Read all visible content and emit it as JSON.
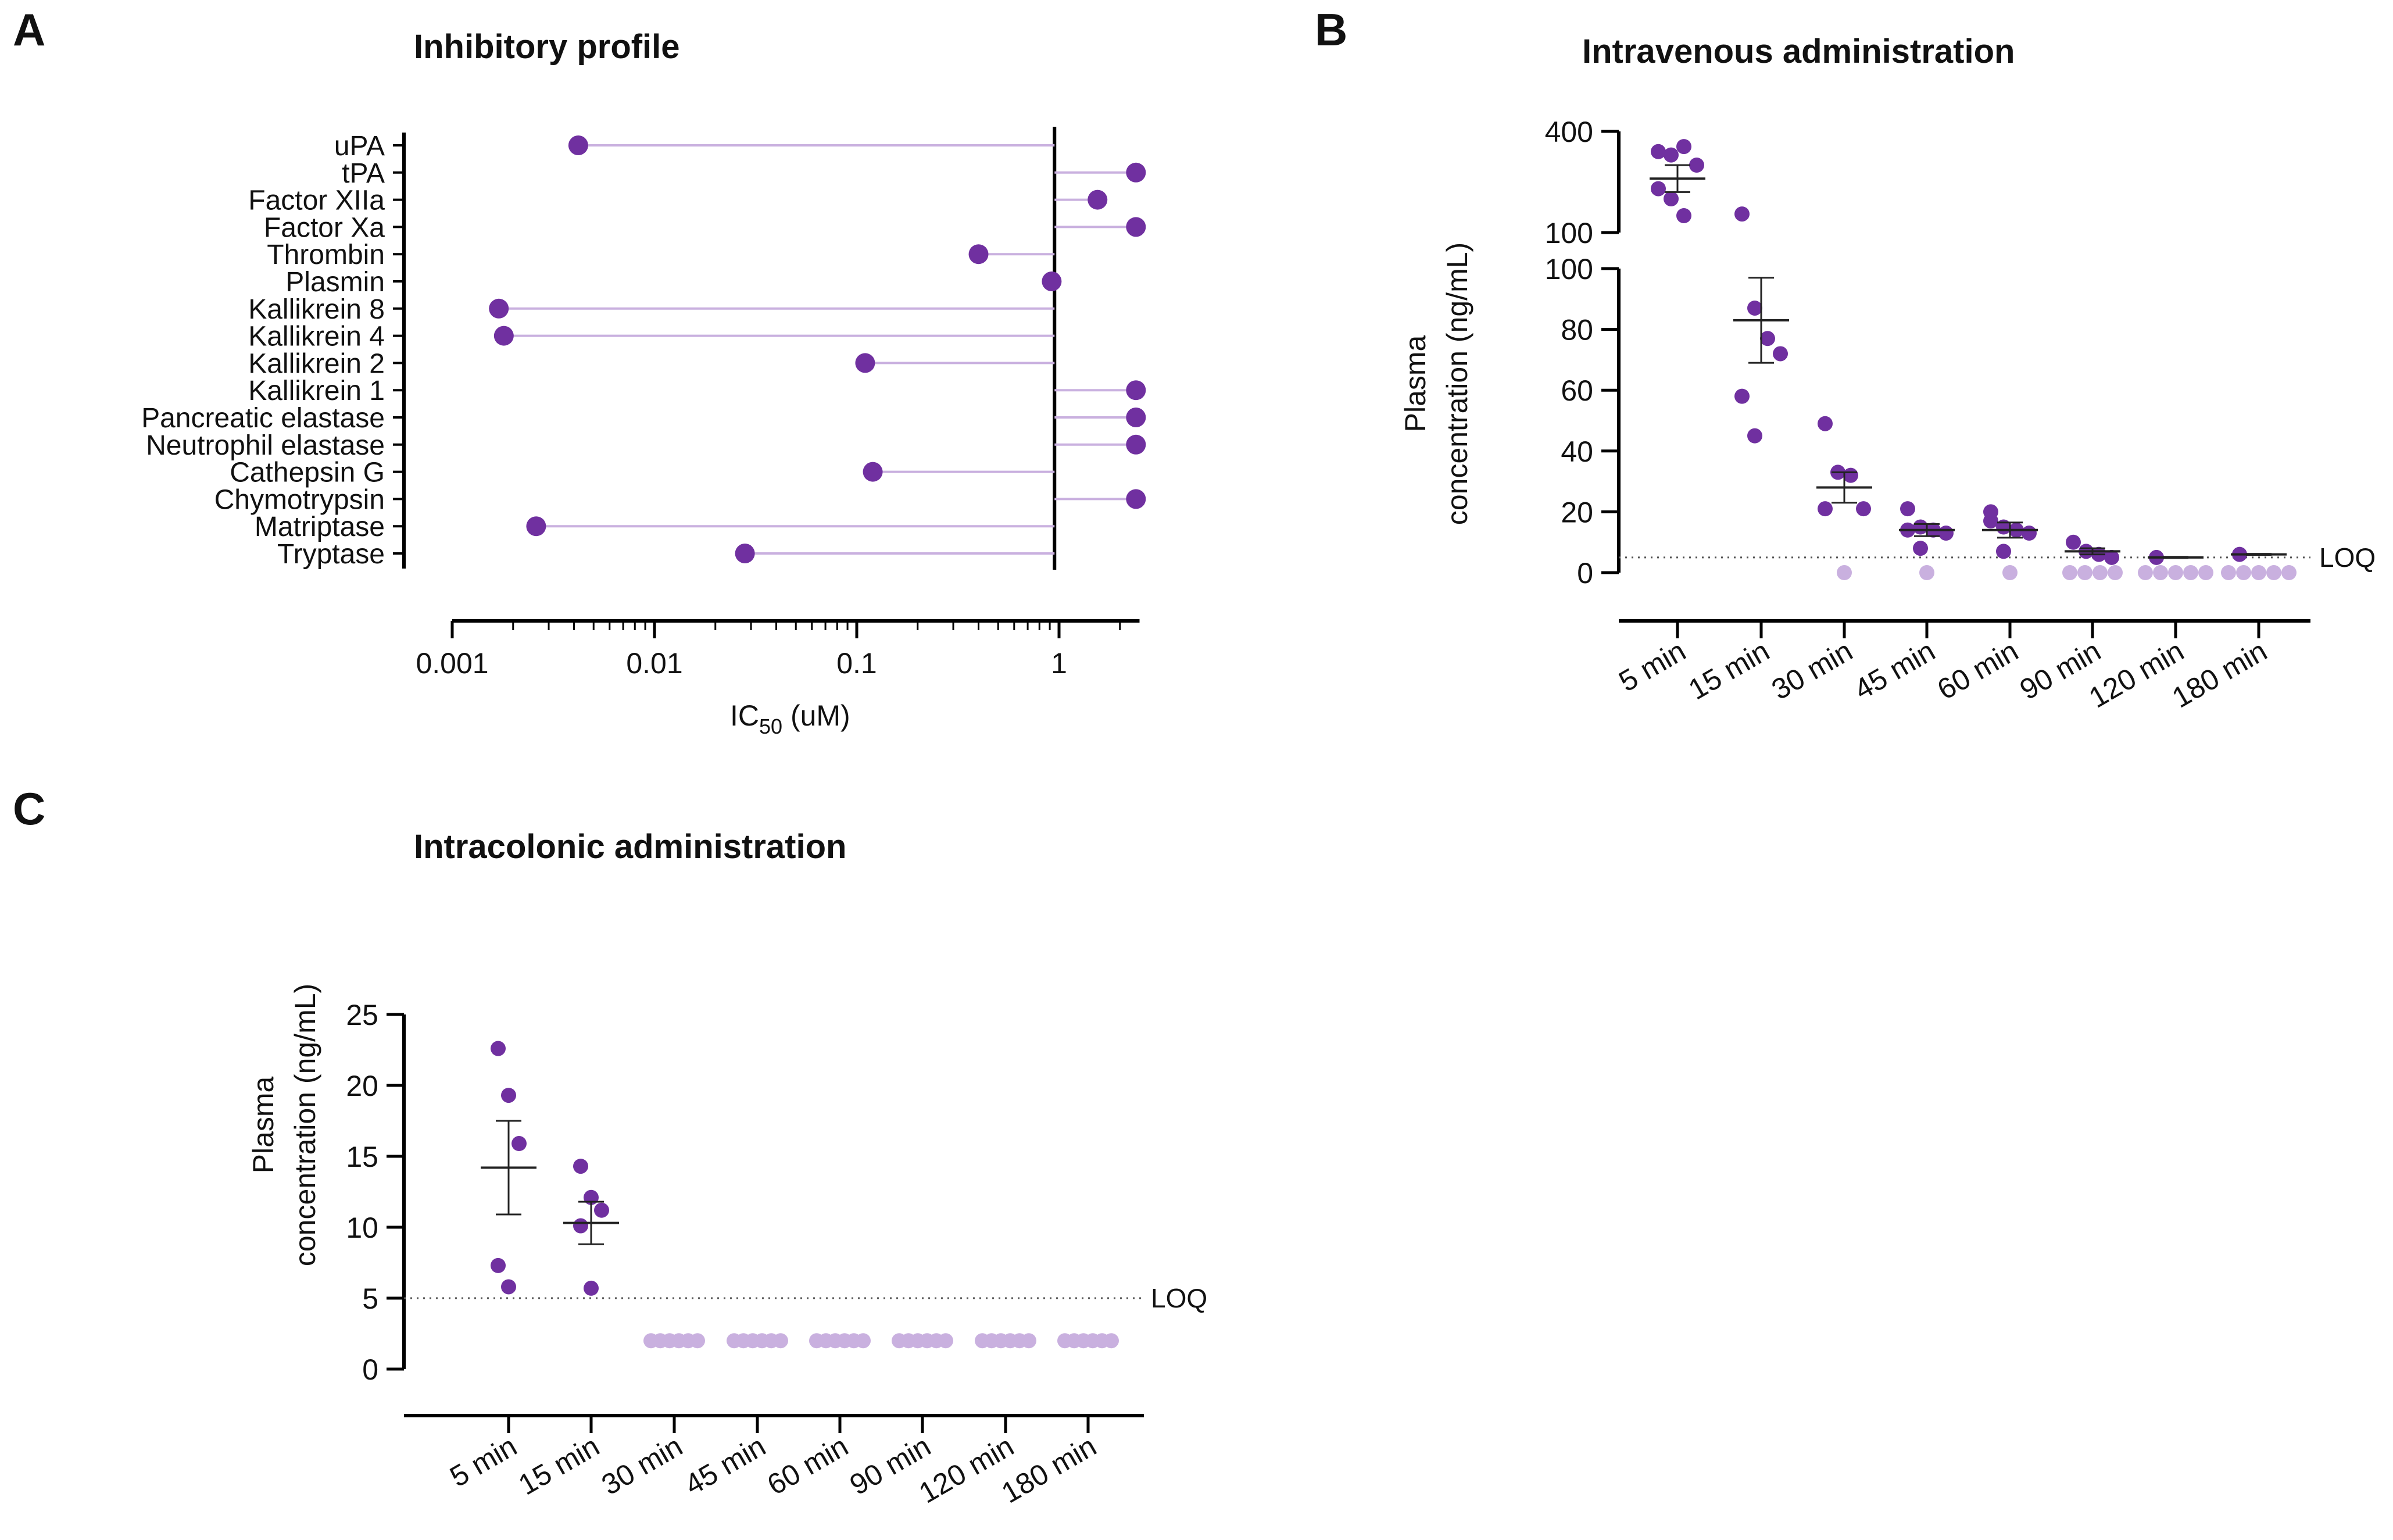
{
  "chart_data": [
    {
      "panel": "A",
      "type": "scatter",
      "title": "Inhibitory profile",
      "xlabel_main": "IC",
      "xlabel_sub": "50",
      "xlabel_unit": " (uM)",
      "xscale": "log",
      "xlim": [
        0.001,
        2.5
      ],
      "xticks": [
        "0.001",
        "0.01",
        "0.1",
        "1"
      ],
      "xtick_values": [
        0.001,
        0.01,
        0.1,
        1
      ],
      "reference_line": 0.95,
      "categories": [
        "uPA",
        "tPA",
        "Factor XIIa",
        "Factor Xa",
        "Thrombin",
        "Plasmin",
        "Kallikrein 8",
        "Kallikrein 4",
        "Kallikrein 2",
        "Kallikrein 1",
        "Pancreatic elastase",
        "Neutrophil elastase",
        "Cathepsin G",
        "Chymotrypsin",
        "Matriptase",
        "Tryptase"
      ],
      "values": [
        0.0042,
        2.4,
        1.55,
        2.4,
        0.4,
        0.92,
        0.0017,
        0.0018,
        0.11,
        2.4,
        2.4,
        2.4,
        0.12,
        2.4,
        0.0026,
        0.028
      ]
    },
    {
      "panel": "B",
      "type": "scatter",
      "title": "Intravenous administration",
      "ylabel_line1": "Plasma",
      "ylabel_line2": "concentration  (ng/mL)",
      "categories": [
        "5 min",
        "15 min",
        "30 min",
        "45 min",
        "60 min",
        "90 min",
        "120 min",
        "180 min"
      ],
      "yticks_lower": [
        "0",
        "20",
        "40",
        "60",
        "80",
        "100"
      ],
      "ytick_values_lower": [
        0,
        20,
        40,
        60,
        80,
        100
      ],
      "ylim_lower": [
        0,
        100
      ],
      "yticks_upper": [
        "100",
        "400"
      ],
      "ytick_values_upper": [
        100,
        400
      ],
      "ylim_upper": [
        100,
        400
      ],
      "loq_label": "LOQ",
      "loq": 5,
      "points": [
        [
          340,
          330,
          355,
          300,
          230,
          200,
          150
        ],
        [
          155,
          87,
          77,
          72,
          58,
          45
        ],
        [
          49,
          33,
          32,
          21,
          21,
          0
        ],
        [
          21,
          15,
          14,
          13,
          14,
          8,
          0
        ],
        [
          17,
          15,
          14,
          13,
          20,
          7,
          0
        ],
        [
          10,
          7,
          6,
          5,
          0,
          0,
          0,
          0
        ],
        [
          5,
          0,
          0,
          0,
          0,
          0
        ],
        [
          6,
          0,
          0,
          0,
          0,
          0
        ]
      ],
      "means": [
        260,
        83,
        28,
        14,
        14,
        7,
        5,
        6
      ],
      "sems": [
        40,
        14,
        5,
        2,
        2.5,
        1,
        0.2,
        0.2
      ]
    },
    {
      "panel": "C",
      "type": "scatter",
      "title": "Intracolonic administration",
      "ylabel_line1": "Plasma",
      "ylabel_line2": "concentration  (ng/mL)",
      "categories": [
        "5 min",
        "15 min",
        "30 min",
        "45 min",
        "60 min",
        "90 min",
        "120 min",
        "180 min"
      ],
      "yticks": [
        "0",
        "5",
        "10",
        "15",
        "20",
        "25"
      ],
      "ytick_values": [
        0,
        5,
        10,
        15,
        20,
        25
      ],
      "ylim": [
        0,
        25
      ],
      "loq_label": "LOQ",
      "loq": 5,
      "points": [
        [
          22.6,
          19.3,
          15.9,
          7.3,
          5.8
        ],
        [
          14.3,
          12.1,
          11.2,
          10.1,
          5.7
        ],
        [
          2,
          2,
          2,
          2,
          2,
          2
        ],
        [
          2,
          2,
          2,
          2,
          2,
          2
        ],
        [
          2,
          2,
          2,
          2,
          2,
          2
        ],
        [
          2,
          2,
          2,
          2,
          2,
          2
        ],
        [
          2,
          2,
          2,
          2,
          2,
          2
        ],
        [
          2,
          2,
          2,
          2,
          2,
          2
        ]
      ],
      "means": [
        14.2,
        10.3
      ],
      "sems": [
        3.3,
        1.5
      ]
    }
  ],
  "colors": {
    "point": "#7030a0",
    "point_light": "#c9b0df",
    "line_light": "#c9b0df",
    "axis": "#000000"
  }
}
